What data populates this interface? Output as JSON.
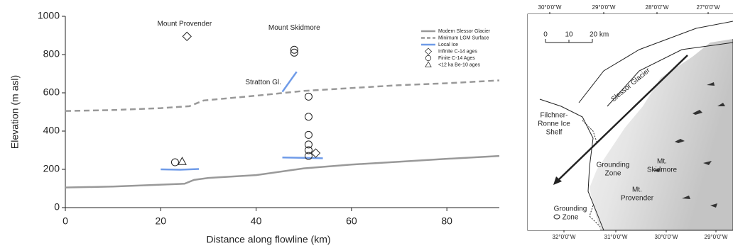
{
  "chart_data": {
    "type": "line",
    "xlabel": "Distance along flowline (km)",
    "ylabel": "Elevation (m asl)",
    "xlim": [
      0,
      91
    ],
    "ylim": [
      0,
      1000
    ],
    "xticks": [
      0,
      20,
      40,
      60,
      80
    ],
    "yticks": [
      0,
      200,
      400,
      600,
      800,
      1000
    ],
    "series": [
      {
        "name": "Modern Slessor Glacier",
        "color": "#999999",
        "style": "solid",
        "x": [
          0,
          10,
          20,
          25,
          27,
          30,
          40,
          50,
          60,
          70,
          80,
          91
        ],
        "values": [
          105,
          110,
          120,
          125,
          145,
          155,
          170,
          205,
          225,
          240,
          255,
          270
        ]
      },
      {
        "name": "Minimum LGM Surface",
        "color": "#999999",
        "style": "dashed",
        "x": [
          0,
          10,
          20,
          26,
          29,
          40,
          50,
          60,
          70,
          80,
          91
        ],
        "values": [
          505,
          510,
          520,
          530,
          560,
          585,
          610,
          625,
          640,
          650,
          665
        ]
      },
      {
        "name": "Local Ice",
        "color": "#6f9be8",
        "style": "solid",
        "x": [
          20,
          24,
          28,
          28,
          45.5,
          48.5,
          48.5,
          45.5,
          50,
          54
        ],
        "values": [
          200,
          198,
          202,
          null,
          605,
          710,
          null,
          262,
          260,
          258
        ]
      },
      {
        "name": "Infinite C-14 ages",
        "color": "#222222",
        "style": "none",
        "marker": "diamond",
        "x": [
          25.5,
          52.5
        ],
        "values": [
          895,
          285
        ]
      },
      {
        "name": "Finite C-14 Ages",
        "color": "#222222",
        "style": "none",
        "marker": "circle",
        "x": [
          48,
          48,
          51,
          51,
          51,
          51,
          51,
          51,
          23
        ],
        "values": [
          825,
          810,
          580,
          475,
          380,
          330,
          300,
          270,
          237
        ]
      },
      {
        "name": "<12 ka Be-10 ages",
        "color": "#222222",
        "style": "none",
        "marker": "triangle",
        "x": [
          24.5
        ],
        "values": [
          240
        ]
      }
    ],
    "annotations": [
      {
        "text": "Mount Provender",
        "x": 25,
        "y": 960
      },
      {
        "text": "Mount Skidmore",
        "x": 48,
        "y": 940
      },
      {
        "text": "Stratton Gl.",
        "x": 41.5,
        "y": 655
      }
    ]
  },
  "map": {
    "top_ticks": [
      "30°0'0\"W",
      "29°0'0\"W",
      "28°0'0\"W",
      "27°0'0\"W"
    ],
    "bottom_ticks": [
      "32°0'0\"W",
      "31°0'0\"W",
      "30°0'0\"W",
      "29°0'0\"W"
    ],
    "scale": [
      "0",
      "10",
      "20 km"
    ],
    "glacier": "Slessor Glacier",
    "ice_shelf": [
      "Filchner-",
      "Ronne Ice",
      "Shelf"
    ],
    "grounding_zone_1": [
      "Grounding",
      "Zone"
    ],
    "grounding_zone_2": [
      "Grounding",
      "Zone"
    ],
    "skidmore": [
      "Mt.",
      "Skidmore"
    ],
    "provender": [
      "Mt.",
      "Provender"
    ]
  }
}
